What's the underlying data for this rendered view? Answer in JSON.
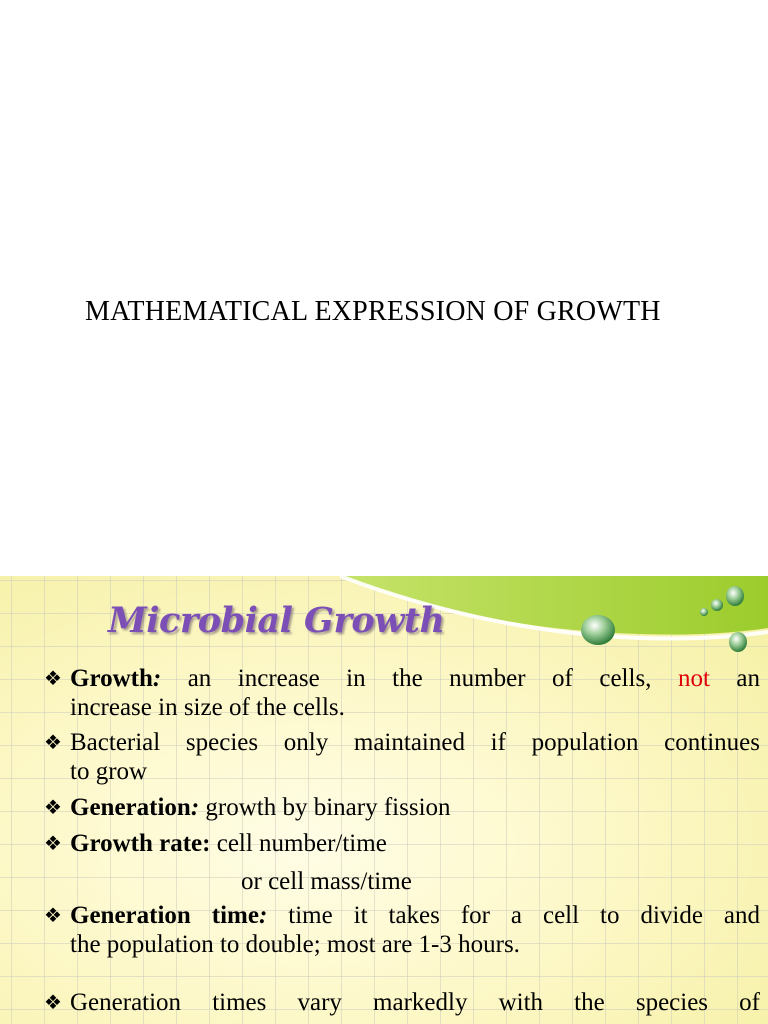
{
  "page1": {
    "heading": "MATHEMATICAL EXPRESSION OF GROWTH"
  },
  "slide": {
    "title": "Microbial Growth",
    "bullet_icon": "diamond-bullet-icon",
    "accent_colors": {
      "title": "#7b4fb6",
      "highlight": "#e0000a",
      "swoosh": "#a7d23a"
    },
    "items": [
      {
        "term": "Growth",
        "colon": ":",
        "text_a": " an increase in the number of cells, ",
        "highlight": "not",
        "text_b": " an",
        "line2": "increase in size of the cells."
      },
      {
        "line1": "Bacterial species only maintained if population continues",
        "line2": "to grow"
      },
      {
        "term": "Generation",
        "colon": ":",
        "text": " growth by binary fission"
      },
      {
        "term": "Growth rate:",
        "text": " cell number/time",
        "line2": "or cell mass/time"
      },
      {
        "term": "Generation time",
        "colon": ":",
        "text": " time it takes for a cell to divide and",
        "line2": "the population to double; most are 1-3 hours."
      },
      {
        "line1": "Generation times vary markedly with the species of"
      }
    ]
  }
}
